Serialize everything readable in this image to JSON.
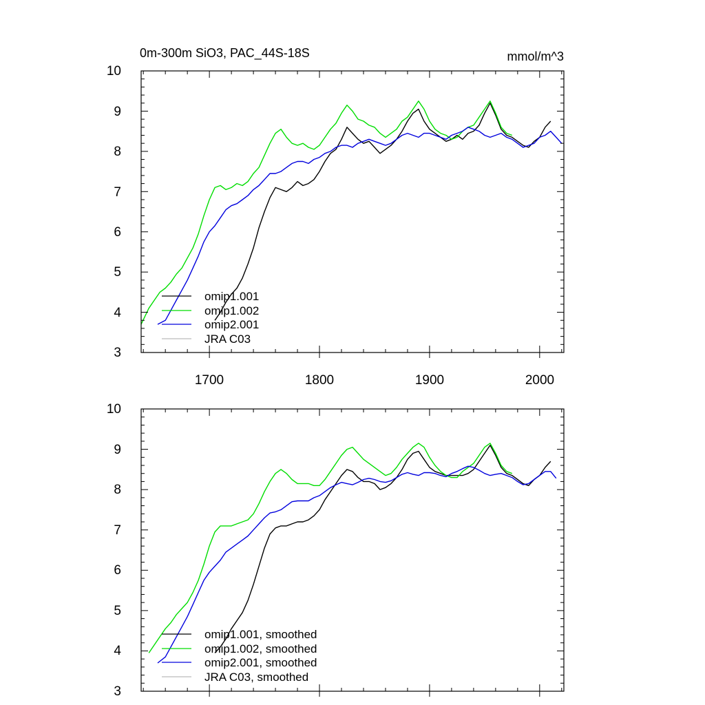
{
  "chart_data": [
    {
      "type": "line",
      "title": "0m-300m SiO3, PAC_44S-18S",
      "units": "mmol/m^3",
      "xlim": [
        1638,
        2022
      ],
      "ylim": [
        3,
        10
      ],
      "xticks": [
        1700,
        1800,
        1900,
        2000
      ],
      "xtick_labels": [
        "1700",
        "1800",
        "1900",
        "2000"
      ],
      "yticks": [
        3,
        4,
        5,
        6,
        7,
        8,
        9,
        10
      ],
      "ytick_labels": [
        "3",
        "4",
        "5",
        "6",
        "7",
        "8",
        "9",
        "10"
      ],
      "legend": [
        "omip1.001",
        "omip1.002",
        "omip2.001",
        "JRA C03"
      ],
      "series": [
        {
          "name": "omip1.001",
          "color": "#000000",
          "x": [
            1705,
            1710,
            1715,
            1720,
            1725,
            1730,
            1735,
            1740,
            1745,
            1750,
            1755,
            1760,
            1765,
            1770,
            1775,
            1780,
            1785,
            1790,
            1795,
            1800,
            1805,
            1810,
            1815,
            1820,
            1825,
            1830,
            1835,
            1840,
            1845,
            1850,
            1855,
            1860,
            1865,
            1870,
            1875,
            1880,
            1885,
            1890,
            1895,
            1900,
            1905,
            1910,
            1915,
            1920,
            1925,
            1930,
            1935,
            1940,
            1945,
            1950,
            1955,
            1960,
            1965,
            1970,
            1975,
            1980,
            1985,
            1990,
            1995,
            2000,
            2005,
            2010
          ],
          "y": [
            3.8,
            4.0,
            4.25,
            4.45,
            4.6,
            4.85,
            5.2,
            5.6,
            6.1,
            6.5,
            6.85,
            7.1,
            7.05,
            7.0,
            7.1,
            7.25,
            7.15,
            7.2,
            7.3,
            7.5,
            7.75,
            7.95,
            8.05,
            8.3,
            8.6,
            8.45,
            8.3,
            8.2,
            8.25,
            8.1,
            7.95,
            8.05,
            8.15,
            8.3,
            8.5,
            8.75,
            8.95,
            9.05,
            8.75,
            8.55,
            8.45,
            8.35,
            8.25,
            8.3,
            8.4,
            8.3,
            8.45,
            8.5,
            8.65,
            8.95,
            9.2,
            8.9,
            8.55,
            8.4,
            8.35,
            8.25,
            8.15,
            8.1,
            8.25,
            8.35,
            8.6,
            8.75
          ]
        },
        {
          "name": "omip1.002",
          "color": "#00dd00",
          "x": [
            1638,
            1645,
            1650,
            1655,
            1660,
            1665,
            1670,
            1675,
            1680,
            1685,
            1690,
            1695,
            1700,
            1705,
            1710,
            1715,
            1720,
            1725,
            1730,
            1735,
            1740,
            1745,
            1750,
            1755,
            1760,
            1765,
            1770,
            1775,
            1780,
            1785,
            1790,
            1795,
            1800,
            1805,
            1810,
            1815,
            1820,
            1825,
            1830,
            1835,
            1840,
            1845,
            1850,
            1855,
            1860,
            1865,
            1870,
            1875,
            1880,
            1885,
            1890,
            1895,
            1900,
            1905,
            1910,
            1915,
            1920,
            1925,
            1930,
            1935,
            1940,
            1945,
            1950,
            1955,
            1960,
            1965,
            1970,
            1975
          ],
          "y": [
            3.7,
            4.1,
            4.3,
            4.5,
            4.6,
            4.75,
            4.95,
            5.1,
            5.35,
            5.6,
            5.95,
            6.4,
            6.8,
            7.1,
            7.15,
            7.05,
            7.1,
            7.2,
            7.15,
            7.25,
            7.45,
            7.6,
            7.9,
            8.2,
            8.45,
            8.55,
            8.35,
            8.2,
            8.15,
            8.2,
            8.1,
            8.05,
            8.15,
            8.35,
            8.55,
            8.7,
            8.95,
            9.15,
            9.0,
            8.8,
            8.75,
            8.65,
            8.6,
            8.45,
            8.35,
            8.45,
            8.55,
            8.75,
            8.85,
            9.05,
            9.25,
            9.05,
            8.75,
            8.55,
            8.45,
            8.4,
            8.3,
            8.35,
            8.5,
            8.6,
            8.65,
            8.85,
            9.05,
            9.25,
            8.95,
            8.6,
            8.45,
            8.4
          ]
        },
        {
          "name": "omip2.001",
          "color": "#0000dd",
          "x": [
            1653,
            1660,
            1665,
            1670,
            1675,
            1680,
            1685,
            1690,
            1695,
            1700,
            1705,
            1710,
            1715,
            1720,
            1725,
            1730,
            1735,
            1740,
            1745,
            1750,
            1755,
            1760,
            1765,
            1770,
            1775,
            1780,
            1785,
            1790,
            1795,
            1800,
            1805,
            1810,
            1815,
            1820,
            1825,
            1830,
            1835,
            1840,
            1845,
            1850,
            1855,
            1860,
            1865,
            1870,
            1875,
            1880,
            1885,
            1890,
            1895,
            1900,
            1905,
            1910,
            1915,
            1920,
            1925,
            1930,
            1935,
            1940,
            1945,
            1950,
            1955,
            1960,
            1965,
            1970,
            1975,
            1980,
            1985,
            1990,
            1995,
            2000,
            2005,
            2010,
            2015,
            2020
          ],
          "y": [
            3.7,
            3.8,
            4.05,
            4.3,
            4.55,
            4.8,
            5.1,
            5.4,
            5.75,
            6.0,
            6.15,
            6.35,
            6.55,
            6.65,
            6.7,
            6.8,
            6.9,
            7.05,
            7.15,
            7.3,
            7.45,
            7.45,
            7.5,
            7.6,
            7.7,
            7.75,
            7.75,
            7.7,
            7.8,
            7.85,
            7.95,
            8.0,
            8.1,
            8.15,
            8.15,
            8.1,
            8.2,
            8.25,
            8.3,
            8.25,
            8.2,
            8.15,
            8.2,
            8.3,
            8.4,
            8.45,
            8.4,
            8.35,
            8.45,
            8.45,
            8.4,
            8.35,
            8.3,
            8.4,
            8.45,
            8.5,
            8.6,
            8.55,
            8.5,
            8.4,
            8.35,
            8.4,
            8.45,
            8.35,
            8.3,
            8.2,
            8.1,
            8.15,
            8.2,
            8.35,
            8.4,
            8.5,
            8.35,
            8.2
          ]
        },
        {
          "name": "JRA C03",
          "color": "#bbbbbb",
          "x": [],
          "y": []
        }
      ]
    },
    {
      "type": "line",
      "title": "",
      "xlim": [
        1638,
        2022
      ],
      "ylim": [
        3,
        10
      ],
      "yticks": [
        3,
        4,
        5,
        6,
        7,
        8,
        9,
        10
      ],
      "ytick_labels": [
        "3",
        "4",
        "5",
        "6",
        "7",
        "8",
        "9",
        "10"
      ],
      "legend": [
        "omip1.001, smoothed",
        "omip1.002, smoothed",
        "omip2.001, smoothed",
        "JRA C03, smoothed"
      ],
      "series": [
        {
          "name": "omip1.001, smoothed",
          "color": "#000000",
          "x": [
            1705,
            1710,
            1715,
            1720,
            1725,
            1730,
            1735,
            1740,
            1745,
            1750,
            1755,
            1760,
            1765,
            1770,
            1775,
            1780,
            1785,
            1790,
            1795,
            1800,
            1805,
            1810,
            1815,
            1820,
            1825,
            1830,
            1835,
            1840,
            1845,
            1850,
            1855,
            1860,
            1865,
            1870,
            1875,
            1880,
            1885,
            1890,
            1895,
            1900,
            1905,
            1910,
            1915,
            1920,
            1925,
            1930,
            1935,
            1940,
            1945,
            1950,
            1955,
            1960,
            1965,
            1970,
            1975,
            1980,
            1985,
            1990,
            1995,
            2000,
            2005,
            2010
          ],
          "y": [
            3.95,
            4.1,
            4.3,
            4.55,
            4.75,
            4.95,
            5.25,
            5.65,
            6.1,
            6.55,
            6.9,
            7.05,
            7.1,
            7.1,
            7.15,
            7.2,
            7.2,
            7.25,
            7.35,
            7.5,
            7.75,
            7.95,
            8.15,
            8.35,
            8.5,
            8.45,
            8.3,
            8.2,
            8.2,
            8.15,
            8.0,
            8.05,
            8.15,
            8.3,
            8.5,
            8.75,
            8.9,
            8.95,
            8.75,
            8.55,
            8.45,
            8.4,
            8.35,
            8.35,
            8.35,
            8.35,
            8.4,
            8.5,
            8.7,
            8.9,
            9.1,
            8.85,
            8.55,
            8.4,
            8.35,
            8.25,
            8.15,
            8.1,
            8.25,
            8.35,
            8.55,
            8.7
          ]
        },
        {
          "name": "omip1.002, smoothed",
          "color": "#00dd00",
          "x": [
            1645,
            1650,
            1655,
            1660,
            1665,
            1670,
            1675,
            1680,
            1685,
            1690,
            1695,
            1700,
            1705,
            1710,
            1715,
            1720,
            1725,
            1730,
            1735,
            1740,
            1745,
            1750,
            1755,
            1760,
            1765,
            1770,
            1775,
            1780,
            1785,
            1790,
            1795,
            1800,
            1805,
            1810,
            1815,
            1820,
            1825,
            1830,
            1835,
            1840,
            1845,
            1850,
            1855,
            1860,
            1865,
            1870,
            1875,
            1880,
            1885,
            1890,
            1895,
            1900,
            1905,
            1910,
            1915,
            1920,
            1925,
            1930,
            1935,
            1940,
            1945,
            1950,
            1955,
            1960,
            1965,
            1970,
            1975
          ],
          "y": [
            3.95,
            4.15,
            4.35,
            4.55,
            4.7,
            4.9,
            5.05,
            5.2,
            5.45,
            5.75,
            6.15,
            6.6,
            6.95,
            7.1,
            7.1,
            7.1,
            7.15,
            7.2,
            7.25,
            7.4,
            7.65,
            7.95,
            8.2,
            8.4,
            8.5,
            8.4,
            8.25,
            8.15,
            8.15,
            8.15,
            8.1,
            8.1,
            8.25,
            8.45,
            8.65,
            8.85,
            9.0,
            9.05,
            8.9,
            8.75,
            8.65,
            8.55,
            8.45,
            8.35,
            8.4,
            8.55,
            8.75,
            8.9,
            9.05,
            9.15,
            9.05,
            8.8,
            8.6,
            8.45,
            8.35,
            8.3,
            8.3,
            8.45,
            8.55,
            8.65,
            8.85,
            9.05,
            9.15,
            8.9,
            8.6,
            8.45,
            8.4
          ]
        },
        {
          "name": "omip2.001, smoothed",
          "color": "#0000dd",
          "x": [
            1653,
            1660,
            1665,
            1670,
            1675,
            1680,
            1685,
            1690,
            1695,
            1700,
            1705,
            1710,
            1715,
            1720,
            1725,
            1730,
            1735,
            1740,
            1745,
            1750,
            1755,
            1760,
            1765,
            1770,
            1775,
            1780,
            1785,
            1790,
            1795,
            1800,
            1805,
            1810,
            1815,
            1820,
            1825,
            1830,
            1835,
            1840,
            1845,
            1850,
            1855,
            1860,
            1865,
            1870,
            1875,
            1880,
            1885,
            1890,
            1895,
            1900,
            1905,
            1910,
            1915,
            1920,
            1925,
            1930,
            1935,
            1940,
            1945,
            1950,
            1955,
            1960,
            1965,
            1970,
            1975,
            1980,
            1985,
            1990,
            1995,
            2000,
            2005,
            2010,
            2015
          ],
          "y": [
            3.7,
            3.85,
            4.1,
            4.35,
            4.6,
            4.85,
            5.15,
            5.45,
            5.75,
            5.95,
            6.1,
            6.25,
            6.45,
            6.55,
            6.65,
            6.75,
            6.85,
            7.0,
            7.15,
            7.3,
            7.42,
            7.45,
            7.5,
            7.6,
            7.7,
            7.72,
            7.72,
            7.72,
            7.8,
            7.85,
            7.95,
            8.05,
            8.12,
            8.18,
            8.15,
            8.12,
            8.18,
            8.25,
            8.28,
            8.25,
            8.2,
            8.18,
            8.22,
            8.3,
            8.38,
            8.42,
            8.38,
            8.35,
            8.42,
            8.42,
            8.4,
            8.35,
            8.32,
            8.4,
            8.45,
            8.52,
            8.58,
            8.55,
            8.48,
            8.4,
            8.35,
            8.38,
            8.4,
            8.35,
            8.3,
            8.2,
            8.12,
            8.15,
            8.25,
            8.35,
            8.45,
            8.45,
            8.28
          ]
        },
        {
          "name": "JRA C03, smoothed",
          "color": "#bbbbbb",
          "x": [],
          "y": []
        }
      ]
    }
  ]
}
